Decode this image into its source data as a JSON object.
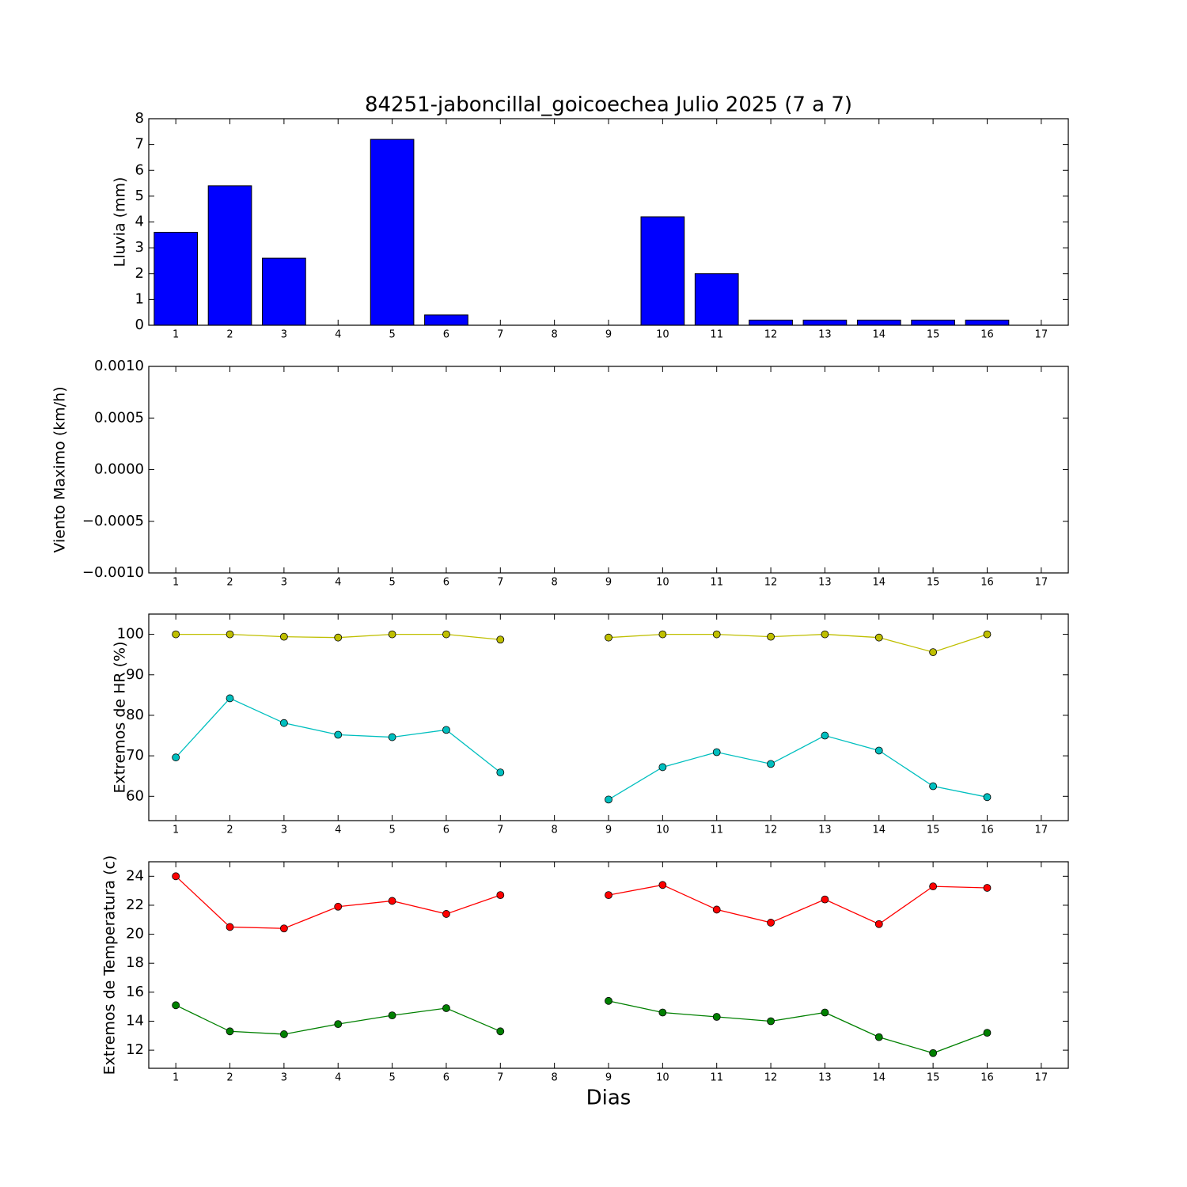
{
  "chart_data": [
    {
      "type": "bar",
      "title": "84251-jaboncillal_goicoechea Julio 2025  (7 a 7)",
      "ylabel": "Lluvia (mm)",
      "x": [
        1,
        2,
        3,
        4,
        5,
        6,
        7,
        8,
        9,
        10,
        11,
        12,
        13,
        14,
        15,
        16
      ],
      "values": [
        3.6,
        5.4,
        2.6,
        0,
        7.2,
        0.4,
        0,
        null,
        0,
        4.2,
        2.0,
        0.2,
        0.2,
        0.2,
        0.2,
        0.2
      ],
      "color": "#0000ff",
      "xlim": [
        0.5,
        17.5
      ],
      "xticks": [
        1,
        2,
        3,
        4,
        5,
        6,
        7,
        8,
        9,
        10,
        11,
        12,
        13,
        14,
        15,
        16,
        17
      ],
      "ylim": [
        0,
        8
      ],
      "yticks": [
        0,
        1,
        2,
        3,
        4,
        5,
        6,
        7,
        8
      ]
    },
    {
      "type": "line",
      "ylabel": "Viento Maximo (km/h)",
      "xlim": [
        0.5,
        17.5
      ],
      "xticks": [
        1,
        2,
        3,
        4,
        5,
        6,
        7,
        8,
        9,
        10,
        11,
        12,
        13,
        14,
        15,
        16,
        17
      ],
      "ylim": [
        -0.001,
        0.001
      ],
      "yticks": [
        {
          "value": -0.001,
          "label": "−0.0010"
        },
        {
          "value": -0.0005,
          "label": "−0.0005"
        },
        {
          "value": 0,
          "label": "0.0000"
        },
        {
          "value": 0.0005,
          "label": "0.0005"
        },
        {
          "value": 0.001,
          "label": "0.0010"
        }
      ]
    },
    {
      "type": "line",
      "ylabel": "Extremos de HR (%)",
      "x": [
        1,
        2,
        3,
        4,
        5,
        6,
        7,
        8,
        9,
        10,
        11,
        12,
        13,
        14,
        15,
        16
      ],
      "series": [
        {
          "color": "#bfbf00",
          "values": [
            100,
            100,
            99.4,
            99.2,
            100,
            100,
            98.7,
            null,
            99.2,
            100,
            100,
            99.4,
            100,
            99.2,
            95.6,
            100
          ]
        },
        {
          "color": "#00bfbf",
          "values": [
            69.6,
            84.2,
            78.1,
            75.2,
            74.6,
            76.4,
            65.9,
            null,
            59.2,
            67.2,
            70.9,
            68.0,
            75.0,
            71.3,
            62.5,
            59.8
          ]
        }
      ],
      "xlim": [
        0.5,
        17.5
      ],
      "xticks": [
        1,
        2,
        3,
        4,
        5,
        6,
        7,
        8,
        9,
        10,
        11,
        12,
        13,
        14,
        15,
        16,
        17
      ],
      "ylim": [
        54,
        105
      ],
      "yticks": [
        60,
        70,
        80,
        90,
        100
      ]
    },
    {
      "type": "line",
      "ylabel": "Extremos de Temperatura (c)",
      "xlabel": "Dias",
      "x": [
        1,
        2,
        3,
        4,
        5,
        6,
        7,
        8,
        9,
        10,
        11,
        12,
        13,
        14,
        15,
        16
      ],
      "series": [
        {
          "color": "#ff0000",
          "values": [
            24.0,
            20.5,
            20.4,
            21.9,
            22.3,
            21.4,
            22.7,
            null,
            22.7,
            23.4,
            21.7,
            20.8,
            22.4,
            20.7,
            23.3,
            23.2
          ]
        },
        {
          "color": "#008000",
          "values": [
            15.1,
            13.3,
            13.1,
            13.8,
            14.4,
            14.9,
            13.3,
            null,
            15.4,
            14.6,
            14.3,
            14.0,
            14.6,
            12.9,
            11.8,
            13.2
          ]
        }
      ],
      "xlim": [
        0.5,
        17.5
      ],
      "xticks": [
        1,
        2,
        3,
        4,
        5,
        6,
        7,
        8,
        9,
        10,
        11,
        12,
        13,
        14,
        15,
        16,
        17
      ],
      "ylim": [
        10.75,
        25
      ],
      "yticks": [
        12,
        14,
        16,
        18,
        20,
        22,
        24
      ]
    }
  ]
}
